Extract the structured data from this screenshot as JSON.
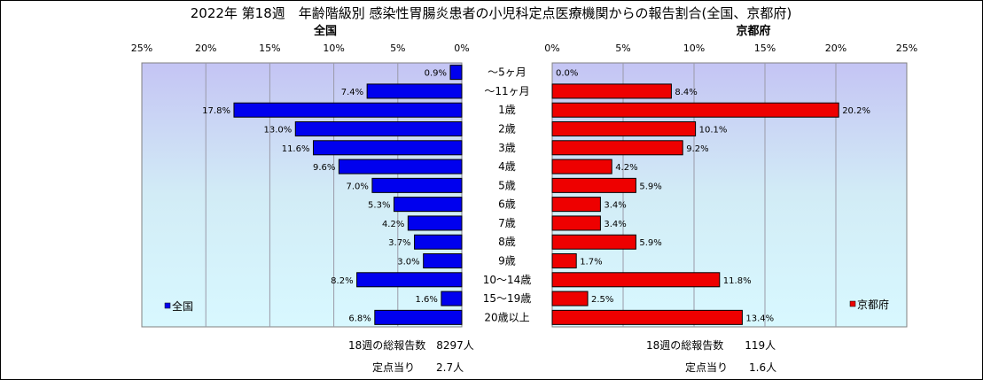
{
  "colors": {
    "nation_bar": "#0000ee",
    "kyoto_bar": "#ee0000"
  },
  "chart_data": {
    "type": "bar",
    "title": "2022年 第18週　年齢階級別 感染性胃腸炎患者の小児科定点医療機関からの報告割合(全国、京都府)",
    "categories": [
      "～5ヶ月",
      "～11ヶ月",
      "1歳",
      "2歳",
      "3歳",
      "4歳",
      "5歳",
      "6歳",
      "7歳",
      "8歳",
      "9歳",
      "10～14歳",
      "15～19歳",
      "20歳以上"
    ],
    "xlim": [
      0,
      25
    ],
    "ticks": [
      "0%",
      "5%",
      "10%",
      "15%",
      "20%",
      "25%"
    ],
    "panels": [
      {
        "name": "全国",
        "legend": "全国",
        "values": [
          0.9,
          7.4,
          17.8,
          13.0,
          11.6,
          9.6,
          7.0,
          5.3,
          4.2,
          3.7,
          3.0,
          8.2,
          1.6,
          6.8
        ],
        "labels": [
          "0.9%",
          "7.4%",
          "17.8%",
          "13.0%",
          "11.6%",
          "9.6%",
          "7.0%",
          "5.3%",
          "4.2%",
          "3.7%",
          "3.0%",
          "8.2%",
          "1.6%",
          "6.8%"
        ]
      },
      {
        "name": "京都府",
        "legend": "京都府",
        "values": [
          0.0,
          8.4,
          20.2,
          10.1,
          9.2,
          4.2,
          5.9,
          3.4,
          3.4,
          5.9,
          1.7,
          11.8,
          2.5,
          13.4
        ],
        "labels": [
          "0.0%",
          "8.4%",
          "20.2%",
          "10.1%",
          "9.2%",
          "4.2%",
          "5.9%",
          "3.4%",
          "3.4%",
          "5.9%",
          "1.7%",
          "11.8%",
          "2.5%",
          "13.4%"
        ]
      }
    ]
  },
  "footer": {
    "nation_total": "18週の総報告数　8297人",
    "nation_per": "定点当り　　2.7人",
    "kyoto_total": "18週の総報告数　　119人",
    "kyoto_per": "定点当り　　1.6人"
  }
}
